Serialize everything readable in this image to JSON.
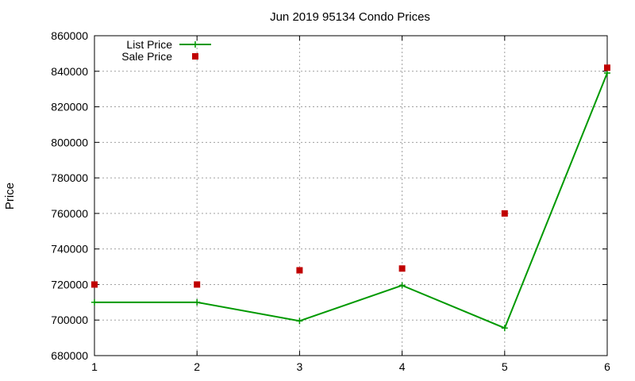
{
  "chart_data": {
    "type": "line",
    "title": "Jun 2019 95134 Condo Prices",
    "xlabel": "",
    "ylabel": "Price",
    "x": [
      1,
      2,
      3,
      4,
      5,
      6
    ],
    "xlim": [
      1,
      6
    ],
    "ylim": [
      680000,
      860000
    ],
    "x_ticks": [
      "1",
      "2",
      "3",
      "4",
      "5",
      "6"
    ],
    "y_ticks": [
      "680000",
      "700000",
      "720000",
      "740000",
      "760000",
      "780000",
      "800000",
      "820000",
      "840000",
      "860000"
    ],
    "grid": true,
    "legend_position": "top-left",
    "series": [
      {
        "name": "List Price",
        "style": "line-with-plus-markers",
        "color": "#009900",
        "values": [
          710000,
          710000,
          699500,
          719500,
          695500,
          839000
        ]
      },
      {
        "name": "Sale Price",
        "style": "square-markers",
        "color": "#c00000",
        "values": [
          720000,
          720000,
          728000,
          729000,
          760000,
          842000
        ]
      }
    ]
  }
}
